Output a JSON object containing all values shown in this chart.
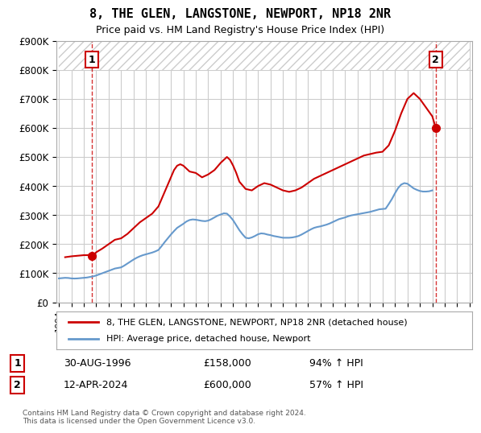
{
  "title": "8, THE GLEN, LANGSTONE, NEWPORT, NP18 2NR",
  "subtitle": "Price paid vs. HM Land Registry's House Price Index (HPI)",
  "ylabel": "",
  "xlabel": "",
  "ylim": [
    0,
    900000
  ],
  "hatch_above": 800000,
  "sale1_x": 1996.664,
  "sale1_y": 158000,
  "sale1_label": "1",
  "sale1_date": "30-AUG-1996",
  "sale1_price": "£158,000",
  "sale1_pct": "94% ↑ HPI",
  "sale2_x": 2024.278,
  "sale2_y": 600000,
  "sale2_label": "2",
  "sale2_date": "12-APR-2024",
  "sale2_price": "£600,000",
  "sale2_pct": "57% ↑ HPI",
  "red_color": "#cc0000",
  "blue_color": "#6699cc",
  "background_color": "#ffffff",
  "grid_color": "#cccccc",
  "legend_line1": "8, THE GLEN, LANGSTONE, NEWPORT, NP18 2NR (detached house)",
  "legend_line2": "HPI: Average price, detached house, Newport",
  "footer": "Contains HM Land Registry data © Crown copyright and database right 2024.\nThis data is licensed under the Open Government Licence v3.0.",
  "xticks": [
    1994,
    1995,
    1996,
    1997,
    1998,
    1999,
    2000,
    2001,
    2002,
    2003,
    2004,
    2005,
    2006,
    2007,
    2008,
    2009,
    2010,
    2011,
    2012,
    2013,
    2014,
    2015,
    2016,
    2017,
    2018,
    2019,
    2020,
    2021,
    2022,
    2023,
    2024,
    2025,
    2026,
    2027
  ],
  "hpi_data": {
    "x": [
      1994.0,
      1994.25,
      1994.5,
      1994.75,
      1995.0,
      1995.25,
      1995.5,
      1995.75,
      1996.0,
      1996.25,
      1996.5,
      1996.75,
      1997.0,
      1997.25,
      1997.5,
      1997.75,
      1998.0,
      1998.25,
      1998.5,
      1998.75,
      1999.0,
      1999.25,
      1999.5,
      1999.75,
      2000.0,
      2000.25,
      2000.5,
      2000.75,
      2001.0,
      2001.25,
      2001.5,
      2001.75,
      2002.0,
      2002.25,
      2002.5,
      2002.75,
      2003.0,
      2003.25,
      2003.5,
      2003.75,
      2004.0,
      2004.25,
      2004.5,
      2004.75,
      2005.0,
      2005.25,
      2005.5,
      2005.75,
      2006.0,
      2006.25,
      2006.5,
      2006.75,
      2007.0,
      2007.25,
      2007.5,
      2007.75,
      2008.0,
      2008.25,
      2008.5,
      2008.75,
      2009.0,
      2009.25,
      2009.5,
      2009.75,
      2010.0,
      2010.25,
      2010.5,
      2010.75,
      2011.0,
      2011.25,
      2011.5,
      2011.75,
      2012.0,
      2012.25,
      2012.5,
      2012.75,
      2013.0,
      2013.25,
      2013.5,
      2013.75,
      2014.0,
      2014.25,
      2014.5,
      2014.75,
      2015.0,
      2015.25,
      2015.5,
      2015.75,
      2016.0,
      2016.25,
      2016.5,
      2016.75,
      2017.0,
      2017.25,
      2017.5,
      2017.75,
      2018.0,
      2018.25,
      2018.5,
      2018.75,
      2019.0,
      2019.25,
      2019.5,
      2019.75,
      2020.0,
      2020.25,
      2020.5,
      2020.75,
      2021.0,
      2021.25,
      2021.5,
      2021.75,
      2022.0,
      2022.25,
      2022.5,
      2022.75,
      2023.0,
      2023.25,
      2023.5,
      2023.75,
      2024.0
    ],
    "y": [
      82000,
      83000,
      84000,
      83500,
      82000,
      81500,
      82000,
      83000,
      84000,
      85000,
      87000,
      89000,
      92000,
      96000,
      100000,
      104000,
      108000,
      112000,
      116000,
      118000,
      120000,
      126000,
      133000,
      140000,
      147000,
      153000,
      158000,
      162000,
      165000,
      168000,
      171000,
      175000,
      180000,
      193000,
      207000,
      220000,
      233000,
      245000,
      256000,
      263000,
      270000,
      278000,
      283000,
      285000,
      284000,
      282000,
      280000,
      279000,
      281000,
      286000,
      292000,
      298000,
      302000,
      306000,
      305000,
      295000,
      282000,
      265000,
      248000,
      234000,
      222000,
      220000,
      223000,
      228000,
      234000,
      237000,
      236000,
      233000,
      231000,
      228000,
      226000,
      224000,
      222000,
      222000,
      222000,
      223000,
      225000,
      228000,
      233000,
      239000,
      245000,
      251000,
      256000,
      259000,
      261000,
      264000,
      267000,
      271000,
      276000,
      281000,
      286000,
      289000,
      292000,
      296000,
      299000,
      301000,
      303000,
      305000,
      307000,
      309000,
      311000,
      314000,
      317000,
      320000,
      321000,
      322000,
      338000,
      355000,
      375000,
      393000,
      405000,
      410000,
      408000,
      400000,
      392000,
      387000,
      383000,
      381000,
      381000,
      382000,
      385000
    ]
  },
  "house_data": {
    "x": [
      1994.5,
      1995.0,
      1995.5,
      1996.0,
      1996.25,
      1996.5,
      1996.664,
      1997.0,
      1997.5,
      1998.0,
      1998.5,
      1999.0,
      1999.5,
      2000.0,
      2000.5,
      2001.0,
      2001.5,
      2002.0,
      2002.5,
      2003.0,
      2003.25,
      2003.5,
      2003.75,
      2004.0,
      2004.25,
      2004.5,
      2005.0,
      2005.5,
      2006.0,
      2006.5,
      2007.0,
      2007.25,
      2007.5,
      2007.75,
      2008.0,
      2008.25,
      2008.5,
      2009.0,
      2009.5,
      2010.0,
      2010.5,
      2011.0,
      2011.5,
      2012.0,
      2012.5,
      2013.0,
      2013.5,
      2014.0,
      2014.5,
      2015.0,
      2015.5,
      2016.0,
      2016.5,
      2017.0,
      2017.5,
      2018.0,
      2018.5,
      2019.0,
      2019.5,
      2020.0,
      2020.5,
      2021.0,
      2021.5,
      2022.0,
      2022.5,
      2023.0,
      2023.5,
      2024.0,
      2024.278
    ],
    "y": [
      155000,
      158000,
      160000,
      162000,
      162000,
      163000,
      158000,
      172000,
      185000,
      200000,
      215000,
      220000,
      235000,
      255000,
      275000,
      290000,
      305000,
      330000,
      380000,
      430000,
      455000,
      470000,
      475000,
      470000,
      460000,
      450000,
      445000,
      430000,
      440000,
      455000,
      480000,
      490000,
      500000,
      490000,
      470000,
      445000,
      415000,
      390000,
      385000,
      400000,
      410000,
      405000,
      395000,
      385000,
      380000,
      385000,
      395000,
      410000,
      425000,
      435000,
      445000,
      455000,
      465000,
      475000,
      485000,
      495000,
      505000,
      510000,
      515000,
      518000,
      540000,
      590000,
      650000,
      700000,
      720000,
      700000,
      670000,
      640000,
      600000
    ]
  }
}
